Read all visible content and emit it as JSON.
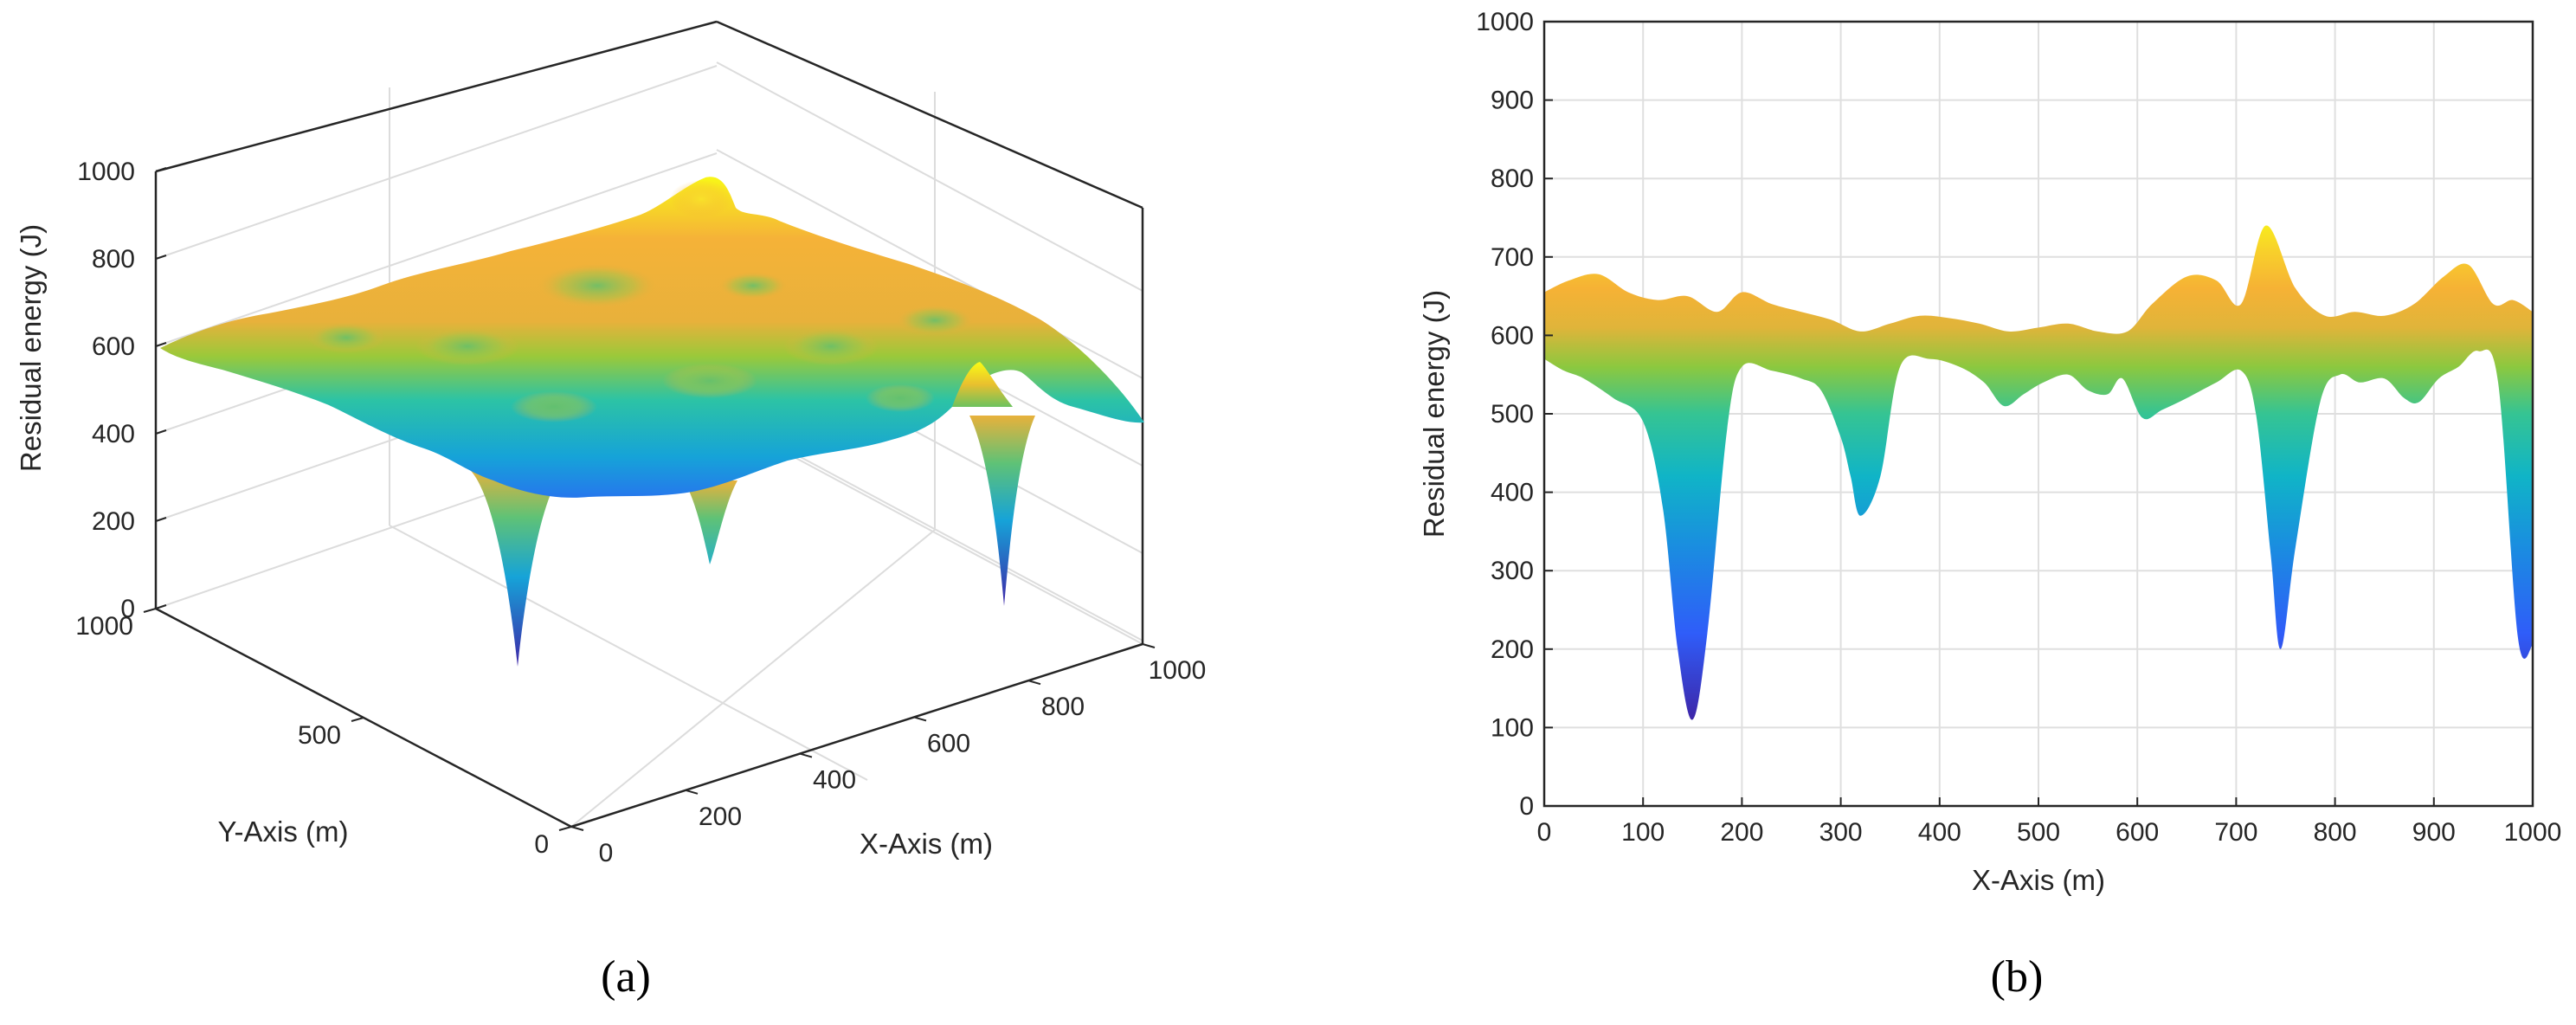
{
  "chart_data": [
    {
      "id": "a",
      "panel_label": "(a)",
      "type": "surface3d",
      "xlabel": "X-Axis (m)",
      "ylabel": "Y-Axis (m)",
      "zlabel": "Residual energy (J)",
      "xlim": [
        0,
        1000
      ],
      "ylim": [
        0,
        1000
      ],
      "zlim": [
        0,
        1000
      ],
      "x_ticks": [
        "0",
        "200",
        "400",
        "600",
        "800",
        "1000"
      ],
      "y_ticks": [
        "0",
        "500",
        "1000"
      ],
      "z_ticks": [
        "0",
        "200",
        "400",
        "600",
        "800",
        "1000"
      ],
      "grid": true,
      "baseline_energy": 590,
      "features": [
        {
          "x": 150,
          "y": 600,
          "z": 110,
          "note": "deep well"
        },
        {
          "x": 330,
          "y": 300,
          "z": 370,
          "note": "well"
        },
        {
          "x": 760,
          "y": 200,
          "z": 220,
          "note": "well"
        },
        {
          "x": 730,
          "y": 300,
          "z": 740,
          "note": "peak"
        },
        {
          "x": 930,
          "y": 900,
          "z": 690,
          "note": "peak"
        }
      ]
    },
    {
      "id": "b",
      "panel_label": "(b)",
      "type": "area",
      "xlabel": "X-Axis (m)",
      "ylabel": "Residual energy (J)",
      "xlim": [
        0,
        1000
      ],
      "ylim": [
        0,
        1000
      ],
      "x_ticks": [
        "0",
        "100",
        "200",
        "300",
        "400",
        "500",
        "600",
        "700",
        "800",
        "900",
        "1000"
      ],
      "y_ticks": [
        "0",
        "100",
        "200",
        "300",
        "400",
        "500",
        "600",
        "700",
        "800",
        "900",
        "1000"
      ],
      "grid": true,
      "upper_envelope": {
        "x": [
          0,
          25,
          55,
          85,
          115,
          145,
          175,
          200,
          230,
          260,
          290,
          320,
          350,
          380,
          410,
          440,
          470,
          500,
          530,
          560,
          590,
          615,
          650,
          680,
          705,
          730,
          760,
          790,
          820,
          850,
          880,
          910,
          935,
          960,
          980,
          1000
        ],
        "y": [
          655,
          670,
          678,
          655,
          645,
          650,
          630,
          655,
          640,
          630,
          620,
          605,
          615,
          625,
          622,
          615,
          605,
          610,
          615,
          605,
          605,
          640,
          675,
          670,
          640,
          740,
          660,
          625,
          630,
          625,
          640,
          675,
          690,
          640,
          645,
          630
        ]
      },
      "lower_envelope": {
        "x": [
          0,
          20,
          40,
          70,
          100,
          120,
          135,
          150,
          165,
          185,
          200,
          230,
          260,
          280,
          300,
          310,
          320,
          340,
          360,
          390,
          420,
          445,
          465,
          485,
          505,
          530,
          550,
          570,
          585,
          605,
          625,
          650,
          680,
          705,
          720,
          735,
          745,
          760,
          785,
          805,
          825,
          850,
          870,
          885,
          905,
          925,
          945,
          965,
          985,
          1000
        ],
        "y": [
          570,
          555,
          545,
          520,
          490,
          380,
          200,
          110,
          220,
          480,
          560,
          555,
          545,
          530,
          470,
          420,
          370,
          420,
          560,
          570,
          560,
          540,
          510,
          525,
          540,
          550,
          530,
          525,
          545,
          495,
          505,
          520,
          540,
          555,
          500,
          320,
          200,
          330,
          515,
          550,
          540,
          545,
          520,
          515,
          545,
          560,
          580,
          540,
          215,
          205
        ]
      }
    }
  ]
}
